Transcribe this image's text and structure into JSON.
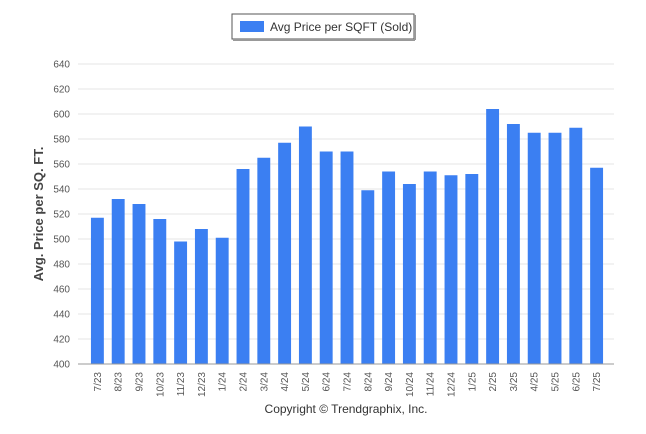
{
  "chart_data": {
    "type": "bar",
    "categories": [
      "7/23",
      "8/23",
      "9/23",
      "10/23",
      "11/23",
      "12/23",
      "1/24",
      "2/24",
      "3/24",
      "4/24",
      "5/24",
      "6/24",
      "7/24",
      "8/24",
      "9/24",
      "10/24",
      "11/24",
      "12/24",
      "1/25",
      "2/25",
      "3/25",
      "4/25",
      "5/25",
      "6/25",
      "7/25"
    ],
    "series": [
      {
        "name": "Avg Price per SQFT (Sold)",
        "values": [
          517,
          532,
          528,
          516,
          498,
          508,
          501,
          556,
          565,
          577,
          590,
          570,
          570,
          539,
          554,
          544,
          554,
          551,
          552,
          604,
          592,
          585,
          585,
          589,
          557
        ]
      }
    ],
    "xlabel": "",
    "ylabel": "Avg. Price per SQ. FT.",
    "ylim": [
      400,
      640
    ],
    "yticks": [
      400,
      420,
      440,
      460,
      480,
      500,
      520,
      540,
      560,
      580,
      600,
      620,
      640
    ],
    "grid": true,
    "legend_position": "top-center",
    "bar_color": "#3b7ff2"
  },
  "credit": "Copyright © Trendgraphix, Inc."
}
